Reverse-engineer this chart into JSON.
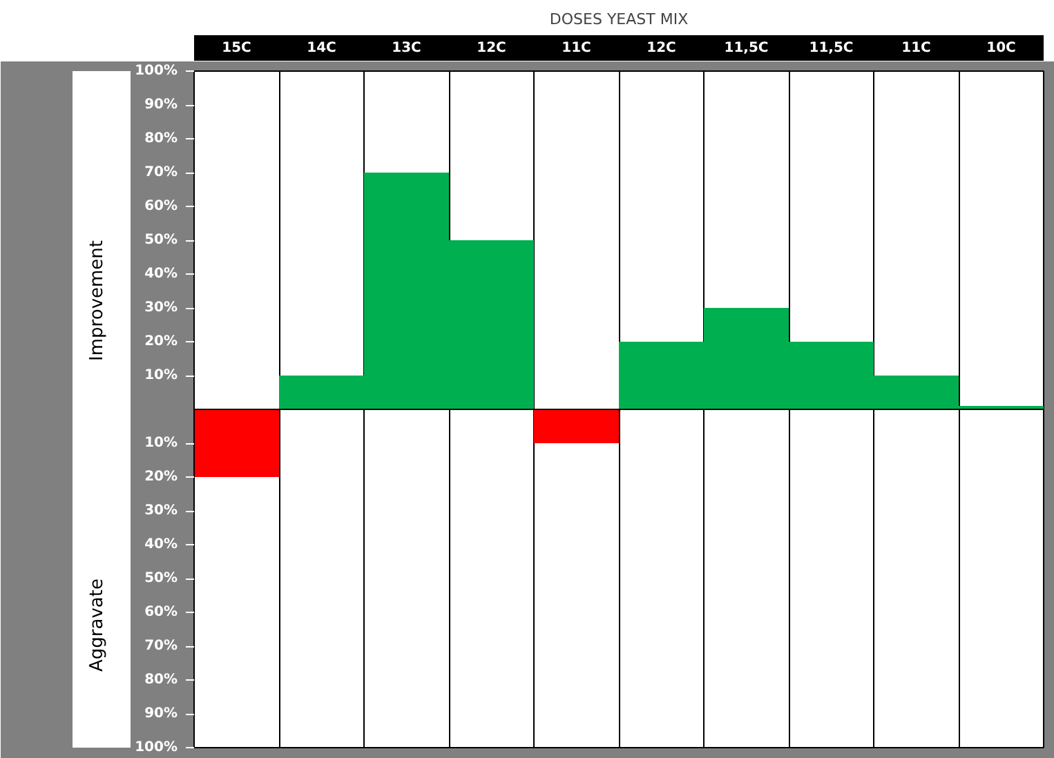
{
  "chart_data": {
    "type": "bar",
    "title": "DOSES YEAST MIX",
    "categories": [
      "15C",
      "14C",
      "13C",
      "12C",
      "11C",
      "12C",
      "11,5C",
      "11,5C",
      "11C",
      "10C"
    ],
    "values": [
      -20,
      10,
      70,
      50,
      -10,
      20,
      30,
      20,
      10,
      1
    ],
    "colors": [
      "#ff0000",
      "#00b050",
      "#00b050",
      "#00b050",
      "#ff0000",
      "#00b050",
      "#00b050",
      "#00b050",
      "#00b050",
      "#00b050"
    ],
    "ylim": [
      -100,
      100
    ],
    "yticks": [
      {
        "value": 100,
        "label": "100%"
      },
      {
        "value": 90,
        "label": "90%"
      },
      {
        "value": 80,
        "label": "80%"
      },
      {
        "value": 70,
        "label": "70%"
      },
      {
        "value": 60,
        "label": "60%"
      },
      {
        "value": 50,
        "label": "50%"
      },
      {
        "value": 40,
        "label": "40%"
      },
      {
        "value": 30,
        "label": "30%"
      },
      {
        "value": 20,
        "label": "20%"
      },
      {
        "value": 10,
        "label": "10%"
      },
      {
        "value": -10,
        "label": "10%"
      },
      {
        "value": -20,
        "label": "20%"
      },
      {
        "value": -30,
        "label": "30%"
      },
      {
        "value": -40,
        "label": "40%"
      },
      {
        "value": -50,
        "label": "50%"
      },
      {
        "value": -60,
        "label": "60%"
      },
      {
        "value": -70,
        "label": "70%"
      },
      {
        "value": -80,
        "label": "80%"
      },
      {
        "value": -90,
        "label": "90%"
      },
      {
        "value": -100,
        "label": "100%"
      }
    ],
    "annotations": [
      "Improvement",
      "Aggravate"
    ],
    "ref_lines": [
      {
        "axis": "y",
        "value": 0,
        "color": "#000000"
      }
    ],
    "grid": "x"
  }
}
